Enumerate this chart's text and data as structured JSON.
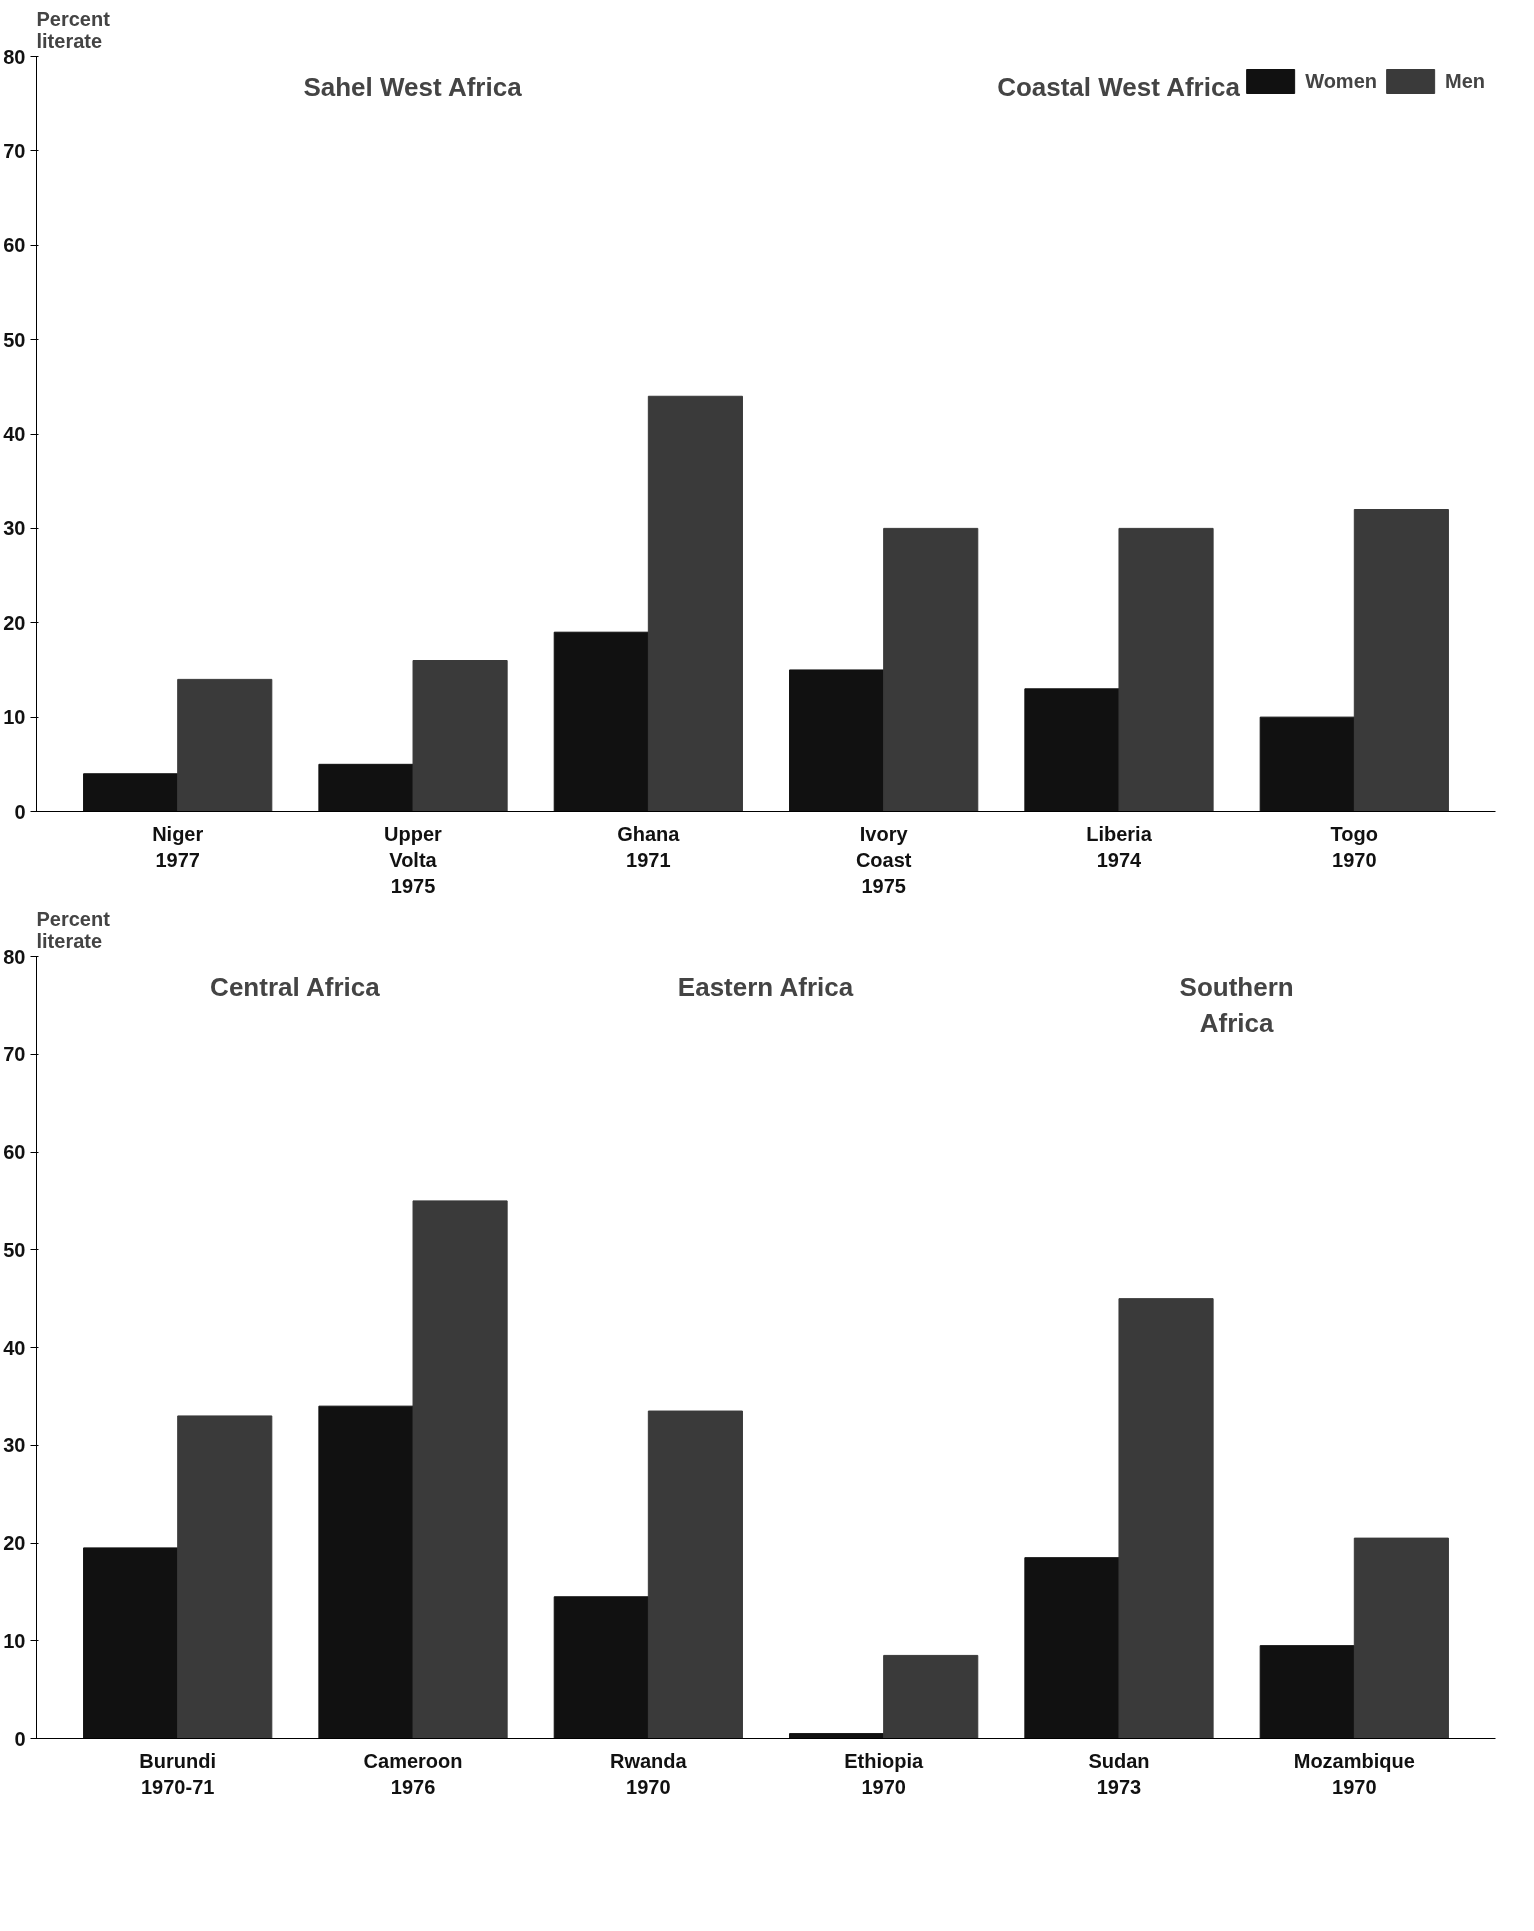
{
  "chart_data": [
    {
      "type": "bar",
      "categories": [
        "Niger\n1977",
        "Upper\nVolta\n1975",
        "Ghana\n1971",
        "Ivory\nCoast\n1975",
        "Liberia\n1974",
        "Togo\n1970"
      ],
      "ylabel": "Percent\nliterate",
      "ylim": [
        0,
        80
      ],
      "yticks": [
        0,
        10,
        20,
        30,
        40,
        50,
        60,
        70,
        80
      ],
      "grid": false,
      "legend": "top right",
      "series": [
        {
          "name": "Women",
          "color": "#111111",
          "values": [
            4,
            5,
            19,
            15,
            13,
            10
          ]
        },
        {
          "name": "Men",
          "color": "#3a3a3a",
          "values": [
            14,
            16,
            44,
            30,
            30,
            32
          ]
        }
      ],
      "annotations": [
        "Sahel West Africa",
        "Coastal West Africa"
      ]
    },
    {
      "type": "bar",
      "categories": [
        "Burundi\n1970-71",
        "Cameroon\n1976",
        "Rwanda\n1970",
        "Ethiopia\n1970",
        "Sudan\n1973",
        "Mozambique\n1970"
      ],
      "ylabel": "Percent\nliterate",
      "ylim": [
        0,
        80
      ],
      "yticks": [
        0,
        10,
        20,
        30,
        40,
        50,
        60,
        70,
        80
      ],
      "grid": false,
      "series": [
        {
          "color": "#111111",
          "values": [
            19.5,
            34,
            14.5,
            0.5,
            18.5,
            9.5
          ]
        },
        {
          "color": "#3a3a3a",
          "values": [
            33,
            55,
            33.5,
            8.5,
            45,
            20.5
          ]
        }
      ],
      "annotations": [
        "Central Africa",
        "Eastern Africa",
        "Southern\nAfrica"
      ]
    }
  ]
}
